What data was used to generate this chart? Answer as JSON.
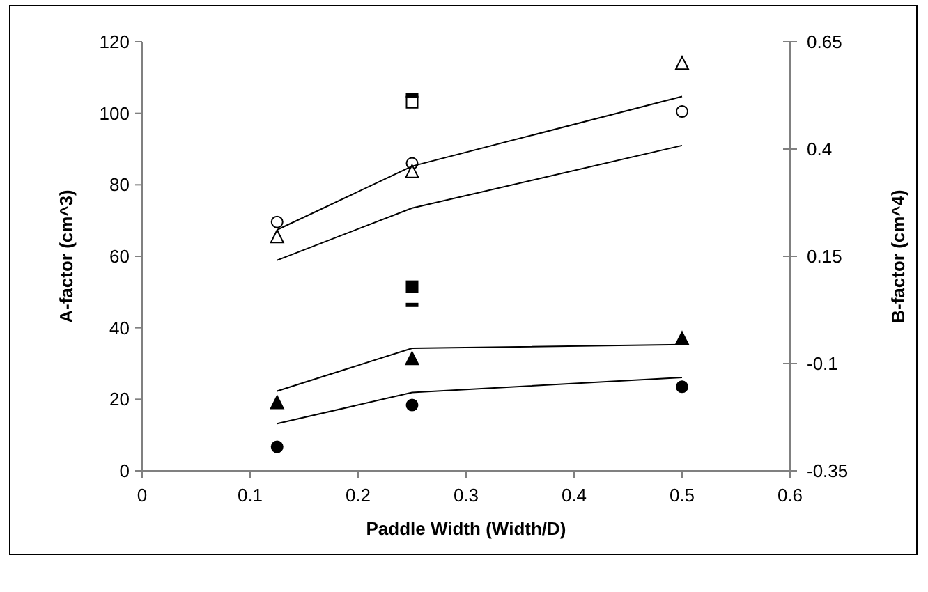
{
  "chart_data": {
    "type": "scatter",
    "xlabel": "Paddle Width (Width/D)",
    "ylabel": "A-factor (cm^3)",
    "y2label": "B-factor (cm^4)",
    "xlim": [
      0,
      0.6
    ],
    "xticks": [
      0,
      0.1,
      0.2,
      0.3,
      0.4,
      0.5,
      0.6
    ],
    "ylim": [
      0,
      120
    ],
    "yticks": [
      0,
      20,
      40,
      60,
      80,
      100,
      120
    ],
    "y2lim": [
      -0.35,
      0.65
    ],
    "y2ticks": [
      -0.35,
      -0.1,
      0.15,
      0.4,
      0.65
    ],
    "grid": false,
    "series": [
      {
        "marker": "circle",
        "color": "#ffffff",
        "x": [
          0.125,
          0.25,
          0.5
        ],
        "values": [
          69.6,
          86,
          100.5
        ]
      },
      {
        "marker": "triangle",
        "color": "#ffffff",
        "x": [
          0.125,
          0.25,
          0.5
        ],
        "values": [
          65.4,
          83.6,
          113.9
        ]
      },
      {
        "marker": "square",
        "color": "#ffffff",
        "x": [
          0.25
        ],
        "values": [
          103.1
        ]
      },
      {
        "x": [
          0.25
        ],
        "color": "#000000",
        "values": [
          105
        ]
      },
      {
        "marker": "square",
        "color": "#000000",
        "x": [
          0.25
        ],
        "values": [
          51.5
        ]
      },
      {
        "x": [
          0.25
        ],
        "color": "#000000",
        "values": [
          46.4
        ]
      },
      {
        "marker": "triangle",
        "color": "#000000",
        "x": [
          0.125,
          0.25,
          0.5
        ],
        "values": [
          19,
          31.3,
          36.9
        ]
      },
      {
        "marker": "circle",
        "color": "#000000",
        "x": [
          0.125,
          0.25,
          0.5
        ],
        "values": [
          6.7,
          18.4,
          23.5
        ]
      },
      {
        "type": "line",
        "marker": "none",
        "color": "#000000",
        "x": [
          0.125,
          0.25,
          0.5
        ],
        "values": [
          67.4,
          85.2,
          104.7
        ]
      },
      {
        "type": "line",
        "marker": "none",
        "color": "#000000",
        "x": [
          0.125,
          0.25,
          0.5
        ],
        "values": [
          58.9,
          73.5,
          91
        ]
      },
      {
        "type": "line",
        "marker": "none",
        "color": "#000000",
        "x": [
          0.125,
          0.25,
          0.5
        ],
        "values": [
          22.3,
          34.3,
          35.3
        ]
      },
      {
        "type": "line",
        "marker": "none",
        "color": "#000000",
        "x": [
          0.125,
          0.25,
          0.5
        ],
        "values": [
          13.2,
          21.9,
          26.1
        ]
      }
    ]
  }
}
